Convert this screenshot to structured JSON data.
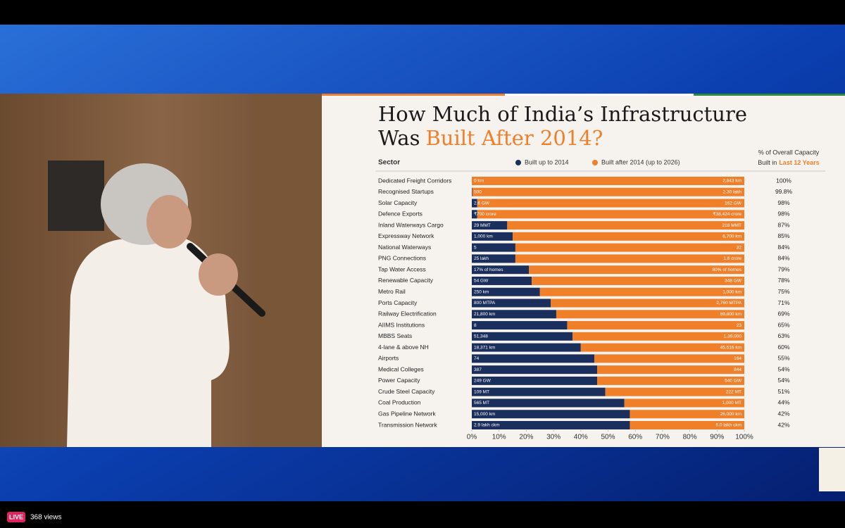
{
  "chart_data": {
    "type": "stacked-bar-horizontal",
    "title": "How Much of India’s Infrastructure",
    "title_line2": "Was",
    "title_highlight": "Built After 2014?",
    "category_header": "Sector",
    "share_header": "% of Overall Capacity",
    "share_header_line2": "Built in",
    "share_header_highlight": "Last 12 Years",
    "categories": [
      "Dedicated Freight Corridors",
      "Recognised Startups",
      "Solar Capacity",
      "Defence Exports",
      "Inland Waterways Cargo",
      "Expressway Network",
      "National Waterways",
      "PNG Connections",
      "Tap Water Access",
      "Renewable Capacity",
      "Metro Rail",
      "Ports Capacity",
      "Railway Electrification",
      "AIIMS Institutions",
      "MBBS Seats",
      "4-lane & above NH",
      "Airports",
      "Medical Colleges",
      "Power Capacity",
      "Crude Steel Capacity",
      "Coal Production",
      "Gas Pipeline Network",
      "Transmission Network"
    ],
    "series": [
      {
        "name": "Built up to 2014",
        "color": "#1b2f5c",
        "values": [
          0,
          0.2,
          2,
          2,
          13,
          15,
          16,
          16,
          21,
          22,
          25,
          29,
          31,
          35,
          37,
          40,
          45,
          46,
          46,
          49,
          56,
          58,
          58
        ],
        "amounts": [
          "0 km",
          "500",
          "2.6 GW",
          "₹700 crore",
          "29 MMT",
          "1,000 km",
          "5",
          "25 lakh",
          "17% of homes",
          "54 GW",
          "250 km",
          "800 MTPA",
          "21,800 km",
          "8",
          "51,348",
          "18,371 km",
          "74",
          "387",
          "249 GW",
          "109 MT",
          "565 MT",
          "15,000 km",
          "2.9 lakh ckm"
        ]
      },
      {
        "name": "Built after 2014 (up to 2026)",
        "color": "#f07f2a",
        "values": [
          100,
          99.8,
          98,
          98,
          87,
          85,
          84,
          84,
          79,
          78,
          75,
          71,
          69,
          65,
          63,
          60,
          55,
          54,
          54,
          51,
          44,
          42,
          42
        ],
        "value_labels": [
          "100%",
          "99.8%",
          "98%",
          "98%",
          "87%",
          "85%",
          "84%",
          "84%",
          "79%",
          "78%",
          "75%",
          "71%",
          "69%",
          "65%",
          "63%",
          "60%",
          "55%",
          "54%",
          "54%",
          "51%",
          "44%",
          "42%",
          "42%"
        ],
        "amounts": [
          "2,843 km",
          "2.30 lakh",
          "162 GW",
          "₹38,424 crore",
          "218 MMT",
          "6,700 km",
          "32",
          "1.6 crore",
          "80% of homes",
          "348 GW",
          "1,000 km",
          "2,760 MTPA",
          "69,800 km",
          "23",
          "1,39,000",
          "45,516 km",
          "164",
          "844",
          "540 GW",
          "222 MT",
          "1,000 MT",
          "26,000 km",
          "6.0 lakh ckm"
        ]
      }
    ],
    "xlim": [
      0,
      100
    ],
    "xticks": [
      {
        "value": 0,
        "label": "0%"
      },
      {
        "value": 10,
        "label": "10%"
      },
      {
        "value": 20,
        "label": "20%"
      },
      {
        "value": 30,
        "label": "30%"
      },
      {
        "value": 40,
        "label": "40%"
      },
      {
        "value": 50,
        "label": "50%"
      },
      {
        "value": 60,
        "label": "60%"
      },
      {
        "value": 70,
        "label": "70%"
      },
      {
        "value": 80,
        "label": "80%"
      },
      {
        "value": 90,
        "label": "90%"
      },
      {
        "value": 100,
        "label": "100%"
      }
    ],
    "grid": false
  },
  "stream": {
    "badge": "LIVE",
    "views": "368 views"
  }
}
